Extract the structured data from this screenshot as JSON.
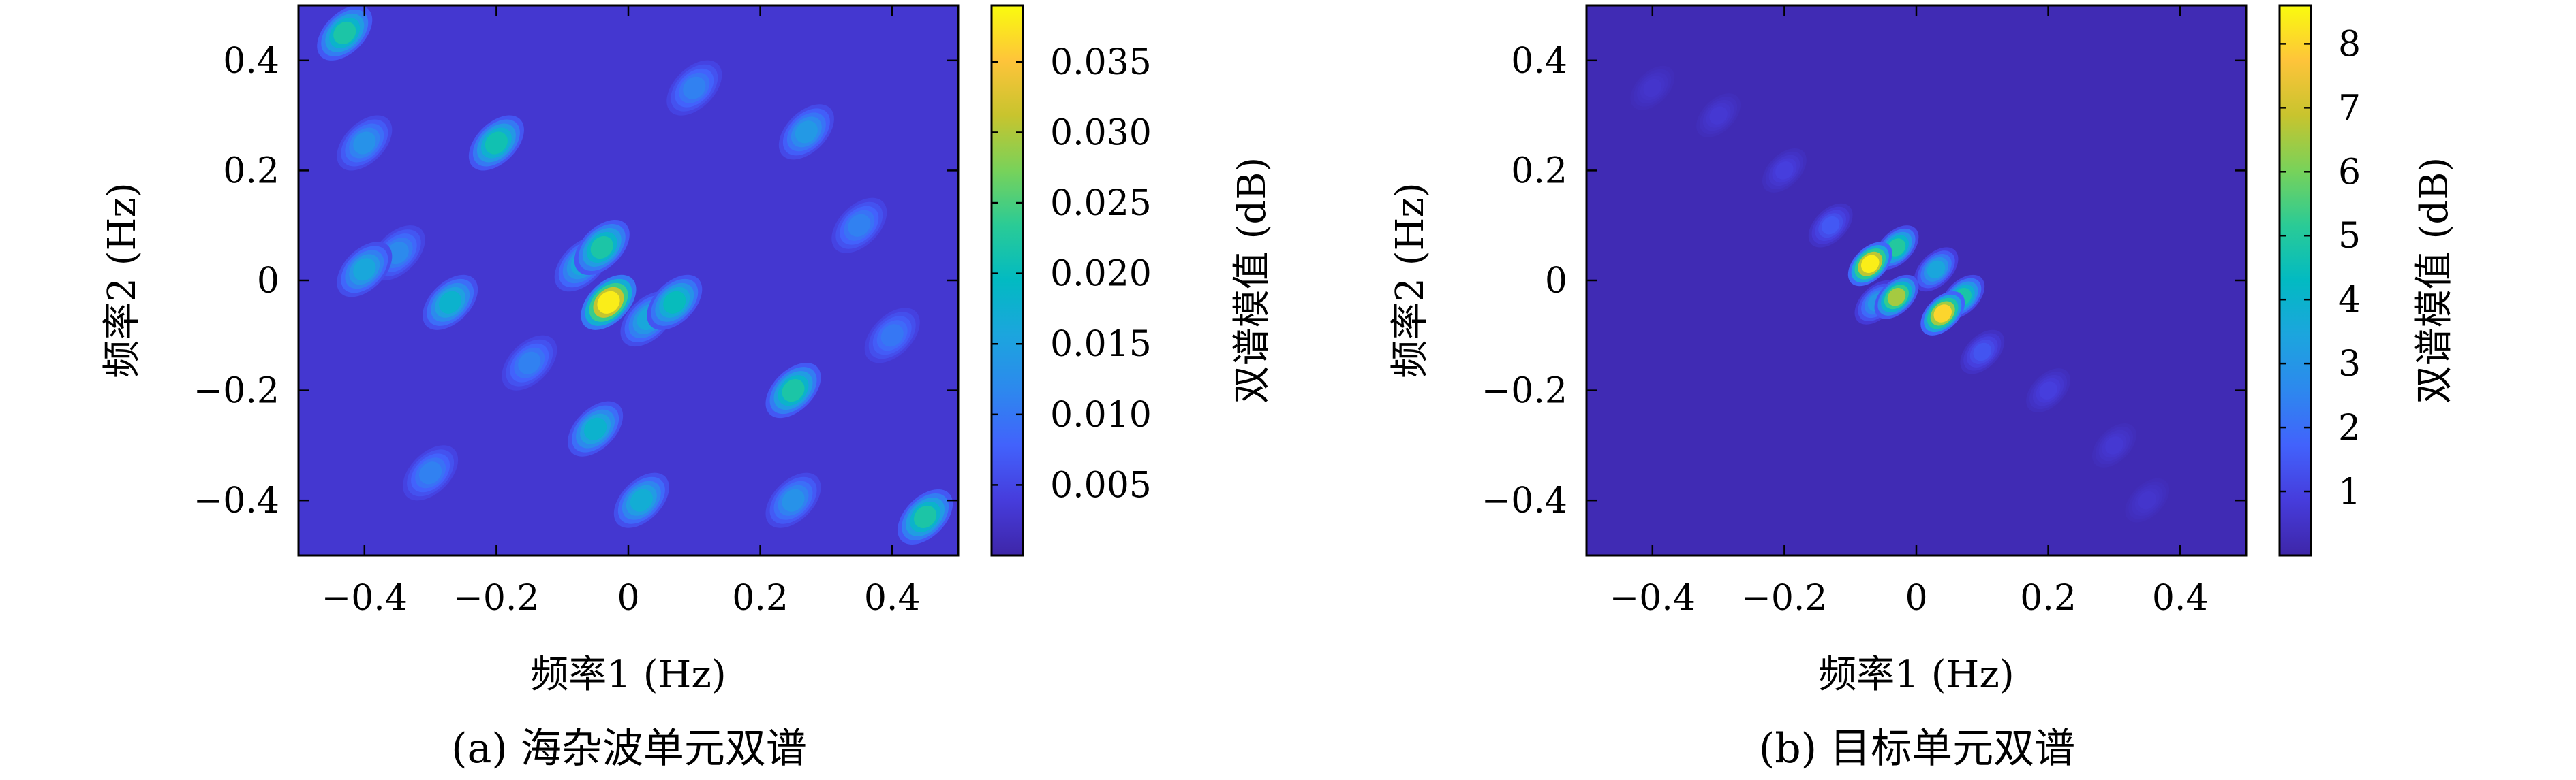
{
  "chart_data": [
    {
      "type": "heatmap",
      "caption": "(a) 海杂波单元双谱",
      "xlabel": "频率1 (Hz)",
      "ylabel": "频率2 (Hz)",
      "xlim": [
        -0.5,
        0.5
      ],
      "ylim": [
        -0.5,
        0.5
      ],
      "x_ticks": [
        -0.4,
        -0.2,
        0,
        0.2,
        0.4
      ],
      "x_tick_labels": [
        "−0.4",
        "−0.2",
        "0",
        "0.2",
        "0.4"
      ],
      "y_ticks": [
        0.4,
        0.2,
        0,
        -0.2,
        -0.4
      ],
      "y_tick_labels": [
        "0.4",
        "0.2",
        "0",
        "−0.2",
        "−0.4"
      ],
      "colorbar": {
        "label": "双谱模值 (dB)",
        "range": [
          0,
          0.039
        ],
        "ticks": [
          0.005,
          0.01,
          0.015,
          0.02,
          0.025,
          0.03,
          0.035
        ],
        "tick_labels": [
          "0.005",
          "0.010",
          "0.015",
          "0.020",
          "0.025",
          "0.030",
          "0.035"
        ],
        "colormap": "parula"
      },
      "background_value": 0.003,
      "peaks": [
        {
          "x": -0.03,
          "y": -0.04,
          "value": 0.038
        },
        {
          "x": -0.04,
          "y": 0.06,
          "value": 0.022
        },
        {
          "x": -0.07,
          "y": 0.03,
          "value": 0.016
        },
        {
          "x": 0.07,
          "y": -0.04,
          "value": 0.02
        },
        {
          "x": 0.03,
          "y": -0.07,
          "value": 0.016
        },
        {
          "x": -0.27,
          "y": -0.04,
          "value": 0.018
        },
        {
          "x": -0.05,
          "y": -0.27,
          "value": 0.018
        },
        {
          "x": 0.25,
          "y": -0.2,
          "value": 0.022
        },
        {
          "x": -0.2,
          "y": 0.25,
          "value": 0.021
        },
        {
          "x": -0.43,
          "y": 0.45,
          "value": 0.022
        },
        {
          "x": 0.45,
          "y": -0.43,
          "value": 0.022
        },
        {
          "x": 0.02,
          "y": -0.4,
          "value": 0.017
        },
        {
          "x": -0.4,
          "y": 0.02,
          "value": 0.016
        },
        {
          "x": 0.27,
          "y": 0.27,
          "value": 0.014
        },
        {
          "x": -0.4,
          "y": 0.25,
          "value": 0.013
        },
        {
          "x": 0.25,
          "y": -0.4,
          "value": 0.013
        },
        {
          "x": -0.35,
          "y": 0.05,
          "value": 0.012
        },
        {
          "x": -0.15,
          "y": -0.15,
          "value": 0.011
        },
        {
          "x": 0.1,
          "y": 0.35,
          "value": 0.011
        },
        {
          "x": -0.3,
          "y": -0.35,
          "value": 0.011
        },
        {
          "x": 0.35,
          "y": 0.1,
          "value": 0.011
        },
        {
          "x": 0.4,
          "y": -0.1,
          "value": 0.01
        }
      ]
    },
    {
      "type": "heatmap",
      "caption": "(b) 目标单元双谱",
      "xlabel": "频率1 (Hz)",
      "ylabel": "频率2 (Hz)",
      "xlim": [
        -0.5,
        0.5
      ],
      "ylim": [
        -0.5,
        0.5
      ],
      "x_ticks": [
        -0.4,
        -0.2,
        0,
        0.2,
        0.4
      ],
      "x_tick_labels": [
        "−0.4",
        "−0.2",
        "0",
        "0.2",
        "0.4"
      ],
      "y_ticks": [
        0.4,
        0.2,
        0,
        -0.2,
        -0.4
      ],
      "y_tick_labels": [
        "0.4",
        "0.2",
        "0",
        "−0.2",
        "−0.4"
      ],
      "colorbar": {
        "label": "双谱模值 (dB)",
        "range": [
          0,
          8.6
        ],
        "ticks": [
          1,
          2,
          3,
          4,
          5,
          6,
          7,
          8
        ],
        "tick_labels": [
          "1",
          "2",
          "3",
          "4",
          "5",
          "6",
          "7",
          "8"
        ],
        "colormap": "parula"
      },
      "background_value": 0.2,
      "peaks": [
        {
          "x": -0.07,
          "y": 0.03,
          "value": 8.4
        },
        {
          "x": 0.04,
          "y": -0.06,
          "value": 8.0
        },
        {
          "x": -0.03,
          "y": -0.03,
          "value": 6.5
        },
        {
          "x": -0.03,
          "y": 0.06,
          "value": 5.0
        },
        {
          "x": 0.07,
          "y": -0.03,
          "value": 4.8
        },
        {
          "x": 0.03,
          "y": 0.02,
          "value": 3.5
        },
        {
          "x": -0.06,
          "y": -0.04,
          "value": 3.0
        },
        {
          "x": -0.13,
          "y": 0.1,
          "value": 1.5
        },
        {
          "x": 0.1,
          "y": -0.13,
          "value": 1.4
        },
        {
          "x": -0.2,
          "y": 0.2,
          "value": 0.9
        },
        {
          "x": 0.2,
          "y": -0.2,
          "value": 0.9
        },
        {
          "x": 0.3,
          "y": -0.3,
          "value": 0.7
        },
        {
          "x": -0.3,
          "y": 0.3,
          "value": 0.7
        },
        {
          "x": -0.4,
          "y": 0.35,
          "value": 0.6
        },
        {
          "x": 0.35,
          "y": -0.4,
          "value": 0.6
        }
      ]
    }
  ]
}
